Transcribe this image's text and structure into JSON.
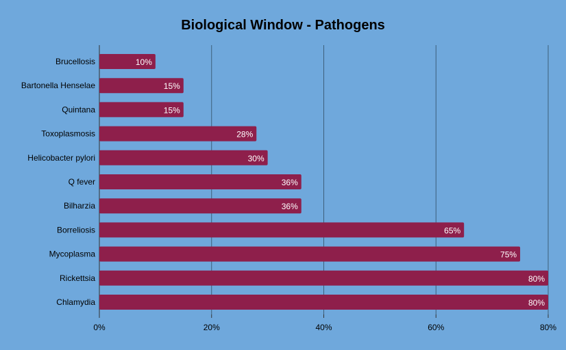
{
  "chart_data": {
    "type": "bar",
    "orientation": "horizontal",
    "title": "Biological Window - Pathogens",
    "xlabel": "",
    "ylabel": "",
    "categories": [
      "Brucellosis",
      "Bartonella Henselae",
      "Quintana",
      "Toxoplasmosis",
      "Helicobacter pylori",
      "Q fever",
      "Bilharzia",
      "Borreliosis",
      "Mycoplasma",
      "Rickettsia",
      "Chlamydia"
    ],
    "values": [
      10,
      15,
      15,
      28,
      30,
      36,
      36,
      65,
      75,
      80,
      80
    ],
    "value_labels": [
      "10%",
      "15%",
      "15%",
      "28%",
      "30%",
      "36%",
      "36%",
      "65%",
      "75%",
      "80%",
      "80%"
    ],
    "xlim": [
      0,
      80
    ],
    "xticks": [
      0,
      20,
      40,
      60,
      80
    ],
    "xtick_labels": [
      "0%",
      "20%",
      "40%",
      "60%",
      "80%"
    ],
    "grid": true,
    "legend": "none",
    "colors": {
      "background": "#6fa8dc",
      "bar": "#8e1f4b",
      "gridline": "#3d5f7a",
      "value_text": "#ffffff"
    }
  }
}
